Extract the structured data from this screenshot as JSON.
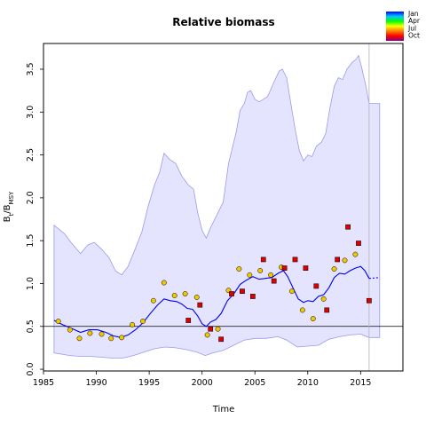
{
  "chart_data": {
    "type": "line",
    "title": "Relative biomass",
    "xlabel": "Time",
    "ylabel": "B_t/B_MSY",
    "xlim": [
      1985,
      2019
    ],
    "ylim": [
      -0.02,
      3.8
    ],
    "xticks": [
      1985,
      1990,
      1995,
      2000,
      2005,
      2010,
      2015
    ],
    "yticks": [
      0.0,
      0.5,
      1.0,
      1.5,
      2.0,
      2.5,
      3.0,
      3.5
    ],
    "xtick_labels": [
      "1985",
      "1990",
      "1995",
      "2000",
      "2005",
      "2010",
      "2015"
    ],
    "ytick_labels": [
      "0.0",
      "0.5",
      "1.0",
      "1.5",
      "2.0",
      "2.5",
      "3.0",
      "3.5"
    ],
    "reference_line": 0.5,
    "vertical_line": 2015.8,
    "grid": false,
    "legend": {
      "placement": "top-right",
      "entries": [
        "Jan",
        "Apr",
        "Jul",
        "Oct"
      ],
      "gradient_colors": [
        "#0000ff",
        "#00c8ff",
        "#00ff00",
        "#ffff00",
        "#ff8000",
        "#ff0000",
        "#800080"
      ]
    },
    "colors": {
      "band_fill": "#e4e4ff",
      "band_edge": "#9999ee",
      "median": "#0000ee",
      "marker_yellow": "#f0c800",
      "marker_red": "#dd0000"
    },
    "upper_band": [
      [
        1986,
        1.68
      ],
      [
        1987,
        1.58
      ],
      [
        1987.6,
        1.48
      ],
      [
        1988.5,
        1.35
      ],
      [
        1989.2,
        1.45
      ],
      [
        1989.8,
        1.48
      ],
      [
        1990.5,
        1.4
      ],
      [
        1991.2,
        1.3
      ],
      [
        1991.8,
        1.15
      ],
      [
        1992.4,
        1.1
      ],
      [
        1993.0,
        1.2
      ],
      [
        1993.6,
        1.38
      ],
      [
        1994.3,
        1.6
      ],
      [
        1994.9,
        1.9
      ],
      [
        1995.5,
        2.15
      ],
      [
        1996.0,
        2.3
      ],
      [
        1996.4,
        2.52
      ],
      [
        1996.9,
        2.45
      ],
      [
        1997.5,
        2.4
      ],
      [
        1998.1,
        2.25
      ],
      [
        1998.7,
        2.15
      ],
      [
        1999.2,
        2.1
      ],
      [
        1999.6,
        1.82
      ],
      [
        2000.0,
        1.62
      ],
      [
        2000.4,
        1.53
      ],
      [
        2000.8,
        1.65
      ],
      [
        2001.4,
        1.8
      ],
      [
        2002.0,
        1.95
      ],
      [
        2002.5,
        2.4
      ],
      [
        2003.2,
        2.75
      ],
      [
        2003.6,
        3.02
      ],
      [
        2004.0,
        3.1
      ],
      [
        2004.3,
        3.23
      ],
      [
        2004.6,
        3.25
      ],
      [
        2005.0,
        3.15
      ],
      [
        2005.4,
        3.12
      ],
      [
        2005.8,
        3.15
      ],
      [
        2006.2,
        3.18
      ],
      [
        2006.8,
        3.35
      ],
      [
        2007.3,
        3.48
      ],
      [
        2007.6,
        3.5
      ],
      [
        2008.0,
        3.4
      ],
      [
        2008.4,
        3.1
      ],
      [
        2008.8,
        2.8
      ],
      [
        2009.2,
        2.55
      ],
      [
        2009.6,
        2.43
      ],
      [
        2010.0,
        2.5
      ],
      [
        2010.4,
        2.48
      ],
      [
        2010.8,
        2.6
      ],
      [
        2011.3,
        2.65
      ],
      [
        2011.7,
        2.75
      ],
      [
        2012.1,
        3.05
      ],
      [
        2012.5,
        3.3
      ],
      [
        2012.9,
        3.4
      ],
      [
        2013.3,
        3.38
      ],
      [
        2013.7,
        3.5
      ],
      [
        2014.2,
        3.58
      ],
      [
        2014.6,
        3.62
      ],
      [
        2014.8,
        3.66
      ],
      [
        2015.1,
        3.52
      ],
      [
        2015.5,
        3.3
      ],
      [
        2015.8,
        3.1
      ],
      [
        2016.8,
        3.1
      ]
    ],
    "lower_band": [
      [
        2016.8,
        0.37
      ],
      [
        2015.8,
        0.37
      ],
      [
        2015.0,
        0.41
      ],
      [
        2014.0,
        0.4
      ],
      [
        2013.0,
        0.38
      ],
      [
        2012.0,
        0.35
      ],
      [
        2011.0,
        0.28
      ],
      [
        2010.0,
        0.27
      ],
      [
        2009.0,
        0.26
      ],
      [
        2008.0,
        0.34
      ],
      [
        2007.2,
        0.38
      ],
      [
        2006.0,
        0.36
      ],
      [
        2005.0,
        0.36
      ],
      [
        2004.0,
        0.34
      ],
      [
        2003.0,
        0.28
      ],
      [
        2002.0,
        0.22
      ],
      [
        2001.0,
        0.19
      ],
      [
        2000.3,
        0.16
      ],
      [
        1999.5,
        0.2
      ],
      [
        1998.5,
        0.23
      ],
      [
        1997.5,
        0.25
      ],
      [
        1996.5,
        0.26
      ],
      [
        1995.5,
        0.24
      ],
      [
        1994.5,
        0.2
      ],
      [
        1993.5,
        0.16
      ],
      [
        1992.5,
        0.13
      ],
      [
        1991.5,
        0.13
      ],
      [
        1990.5,
        0.14
      ],
      [
        1989.5,
        0.15
      ],
      [
        1988.5,
        0.15
      ],
      [
        1987.5,
        0.16
      ],
      [
        1986,
        0.19
      ]
    ],
    "median_line": [
      [
        1986,
        0.57
      ],
      [
        1986.8,
        0.52
      ],
      [
        1987.6,
        0.48
      ],
      [
        1988.5,
        0.43
      ],
      [
        1989.3,
        0.46
      ],
      [
        1990.1,
        0.46
      ],
      [
        1990.9,
        0.43
      ],
      [
        1991.6,
        0.39
      ],
      [
        1992.3,
        0.37
      ],
      [
        1993.0,
        0.4
      ],
      [
        1993.7,
        0.46
      ],
      [
        1994.4,
        0.54
      ],
      [
        1995.1,
        0.65
      ],
      [
        1995.8,
        0.75
      ],
      [
        1996.4,
        0.82
      ],
      [
        1997.0,
        0.8
      ],
      [
        1997.6,
        0.79
      ],
      [
        1998.1,
        0.76
      ],
      [
        1998.6,
        0.71
      ],
      [
        1999.1,
        0.7
      ],
      [
        1999.6,
        0.62
      ],
      [
        2000.0,
        0.53
      ],
      [
        2000.4,
        0.5
      ],
      [
        2000.8,
        0.55
      ],
      [
        2001.3,
        0.58
      ],
      [
        2001.8,
        0.65
      ],
      [
        2002.4,
        0.8
      ],
      [
        2003.0,
        0.88
      ],
      [
        2003.6,
        0.99
      ],
      [
        2004.2,
        1.04
      ],
      [
        2004.8,
        1.08
      ],
      [
        2005.4,
        1.05
      ],
      [
        2006.0,
        1.06
      ],
      [
        2006.6,
        1.07
      ],
      [
        2007.2,
        1.12
      ],
      [
        2007.7,
        1.15
      ],
      [
        2008.1,
        1.08
      ],
      [
        2008.6,
        0.95
      ],
      [
        2009.1,
        0.82
      ],
      [
        2009.6,
        0.78
      ],
      [
        2010.0,
        0.8
      ],
      [
        2010.5,
        0.79
      ],
      [
        2011.0,
        0.85
      ],
      [
        2011.5,
        0.87
      ],
      [
        2012.0,
        0.95
      ],
      [
        2012.5,
        1.07
      ],
      [
        2013.0,
        1.12
      ],
      [
        2013.5,
        1.11
      ],
      [
        2014.0,
        1.15
      ],
      [
        2014.5,
        1.18
      ],
      [
        2015.0,
        1.2
      ],
      [
        2015.4,
        1.15
      ],
      [
        2015.8,
        1.06
      ]
    ],
    "median_forecast": [
      [
        2015.8,
        1.06
      ],
      [
        2016.8,
        1.07
      ]
    ],
    "observations": [
      {
        "x": 1986.4,
        "y": 0.56,
        "color": "yellow"
      },
      {
        "x": 1987.5,
        "y": 0.46,
        "color": "yellow"
      },
      {
        "x": 1988.4,
        "y": 0.36,
        "color": "yellow"
      },
      {
        "x": 1989.4,
        "y": 0.42,
        "color": "yellow"
      },
      {
        "x": 1990.5,
        "y": 0.41,
        "color": "yellow"
      },
      {
        "x": 1991.4,
        "y": 0.36,
        "color": "yellow"
      },
      {
        "x": 1992.4,
        "y": 0.37,
        "color": "yellow"
      },
      {
        "x": 1993.4,
        "y": 0.52,
        "color": "yellow"
      },
      {
        "x": 1994.4,
        "y": 0.56,
        "color": "yellow"
      },
      {
        "x": 1995.4,
        "y": 0.8,
        "color": "yellow"
      },
      {
        "x": 1996.4,
        "y": 1.01,
        "color": "yellow"
      },
      {
        "x": 1997.4,
        "y": 0.86,
        "color": "yellow"
      },
      {
        "x": 1998.4,
        "y": 0.88,
        "color": "yellow"
      },
      {
        "x": 1998.7,
        "y": 0.57,
        "color": "red"
      },
      {
        "x": 1999.5,
        "y": 0.84,
        "color": "yellow"
      },
      {
        "x": 1999.8,
        "y": 0.75,
        "color": "red"
      },
      {
        "x": 2000.5,
        "y": 0.4,
        "color": "yellow"
      },
      {
        "x": 2000.8,
        "y": 0.47,
        "color": "red"
      },
      {
        "x": 2001.5,
        "y": 0.47,
        "color": "yellow"
      },
      {
        "x": 2001.8,
        "y": 0.35,
        "color": "red"
      },
      {
        "x": 2002.5,
        "y": 0.92,
        "color": "yellow"
      },
      {
        "x": 2002.8,
        "y": 0.88,
        "color": "red"
      },
      {
        "x": 2003.5,
        "y": 1.17,
        "color": "yellow"
      },
      {
        "x": 2003.8,
        "y": 0.91,
        "color": "red"
      },
      {
        "x": 2004.5,
        "y": 1.1,
        "color": "yellow"
      },
      {
        "x": 2004.8,
        "y": 0.85,
        "color": "red"
      },
      {
        "x": 2005.5,
        "y": 1.15,
        "color": "yellow"
      },
      {
        "x": 2005.8,
        "y": 1.28,
        "color": "red"
      },
      {
        "x": 2006.5,
        "y": 1.1,
        "color": "yellow"
      },
      {
        "x": 2006.8,
        "y": 1.03,
        "color": "red"
      },
      {
        "x": 2007.5,
        "y": 1.19,
        "color": "yellow"
      },
      {
        "x": 2007.8,
        "y": 1.18,
        "color": "red"
      },
      {
        "x": 2008.5,
        "y": 0.91,
        "color": "yellow"
      },
      {
        "x": 2008.8,
        "y": 1.28,
        "color": "red"
      },
      {
        "x": 2009.5,
        "y": 0.69,
        "color": "yellow"
      },
      {
        "x": 2009.8,
        "y": 1.18,
        "color": "red"
      },
      {
        "x": 2010.5,
        "y": 0.59,
        "color": "yellow"
      },
      {
        "x": 2010.8,
        "y": 0.97,
        "color": "red"
      },
      {
        "x": 2011.5,
        "y": 0.82,
        "color": "yellow"
      },
      {
        "x": 2011.8,
        "y": 0.69,
        "color": "red"
      },
      {
        "x": 2012.5,
        "y": 1.17,
        "color": "yellow"
      },
      {
        "x": 2012.8,
        "y": 1.28,
        "color": "red"
      },
      {
        "x": 2013.5,
        "y": 1.27,
        "color": "yellow"
      },
      {
        "x": 2013.8,
        "y": 1.66,
        "color": "red"
      },
      {
        "x": 2014.5,
        "y": 1.34,
        "color": "yellow"
      },
      {
        "x": 2014.8,
        "y": 1.47,
        "color": "red"
      },
      {
        "x": 2015.8,
        "y": 0.8,
        "color": "red"
      }
    ]
  }
}
